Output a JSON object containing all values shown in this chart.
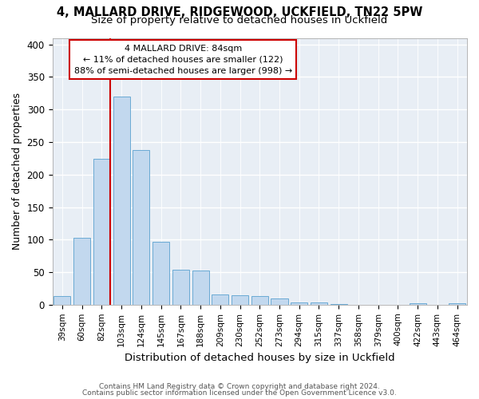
{
  "title1": "4, MALLARD DRIVE, RIDGEWOOD, UCKFIELD, TN22 5PW",
  "title2": "Size of property relative to detached houses in Uckfield",
  "xlabel": "Distribution of detached houses by size in Uckfield",
  "ylabel": "Number of detached properties",
  "categories": [
    "39sqm",
    "60sqm",
    "82sqm",
    "103sqm",
    "124sqm",
    "145sqm",
    "167sqm",
    "188sqm",
    "209sqm",
    "230sqm",
    "252sqm",
    "273sqm",
    "294sqm",
    "315sqm",
    "337sqm",
    "358sqm",
    "379sqm",
    "400sqm",
    "422sqm",
    "443sqm",
    "464sqm"
  ],
  "values": [
    13,
    103,
    224,
    320,
    238,
    97,
    54,
    52,
    16,
    14,
    13,
    10,
    4,
    3,
    1,
    0,
    0,
    0,
    2,
    0,
    2
  ],
  "bar_color": "#c2d8ee",
  "bar_edge_color": "#6aaad4",
  "bg_color": "#e8eef5",
  "grid_color": "#ffffff",
  "vline_color": "#cc0000",
  "vline_index": 2,
  "ann_line1": "4 MALLARD DRIVE: 84sqm",
  "ann_line2": "← 11% of detached houses are smaller (122)",
  "ann_line3": "88% of semi-detached houses are larger (998) →",
  "ann_box_color": "#cc0000",
  "ylim": [
    0,
    410
  ],
  "yticks": [
    0,
    50,
    100,
    150,
    200,
    250,
    300,
    350,
    400
  ],
  "footnote1": "Contains HM Land Registry data © Crown copyright and database right 2024.",
  "footnote2": "Contains public sector information licensed under the Open Government Licence v3.0."
}
